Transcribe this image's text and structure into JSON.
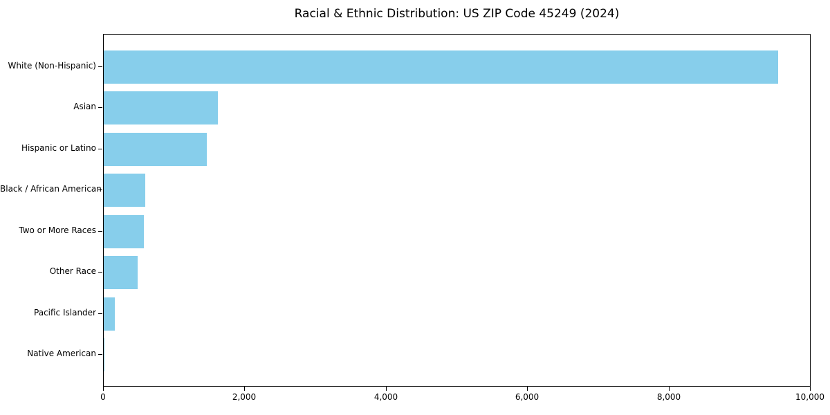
{
  "chart_data": {
    "type": "bar",
    "orientation": "horizontal",
    "title": "Racial & Ethnic Distribution: US ZIP Code 45249 (2024)",
    "categories": [
      "White (Non-Hispanic)",
      "Asian",
      "Hispanic or Latino",
      "Black / African American",
      "Two or More Races",
      "Other Race",
      "Pacific Islander",
      "Native American"
    ],
    "values": [
      9550,
      1615,
      1455,
      590,
      570,
      480,
      160,
      10
    ],
    "xlabel": "",
    "ylabel": "",
    "xlim": [
      0,
      10000
    ],
    "x_ticks": [
      0,
      2000,
      4000,
      6000,
      8000,
      10000
    ],
    "x_tick_labels": [
      "0",
      "2,000",
      "4,000",
      "6,000",
      "8,000",
      "10,000"
    ],
    "bar_color": "#87CEEB",
    "spine_color": "#000000",
    "grid": false,
    "legend": "none"
  }
}
